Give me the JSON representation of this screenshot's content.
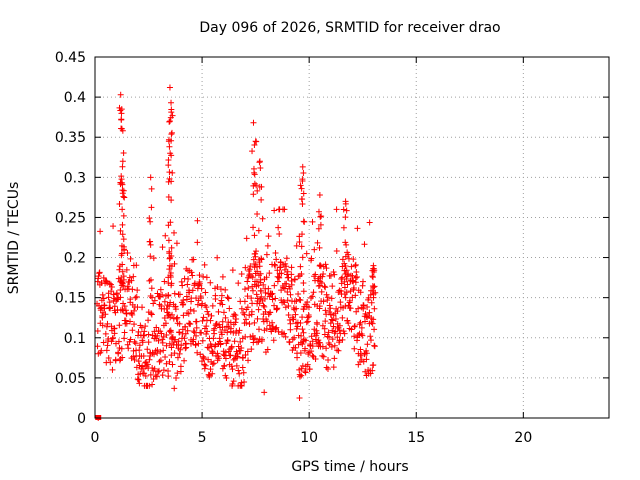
{
  "chart_data": {
    "type": "scatter",
    "title": "Day 096 of 2026, SRMTID for receiver drao",
    "xlabel": "GPS time / hours",
    "ylabel": "SRMTID / TECUs",
    "xlim": [
      0,
      24
    ],
    "ylim": [
      0,
      0.45
    ],
    "xticks": [
      0,
      5,
      10,
      15,
      20
    ],
    "yticks": [
      0,
      0.05,
      0.1,
      0.15,
      0.2,
      0.25,
      0.3,
      0.35,
      0.4,
      0.45
    ],
    "ytick_labels": [
      "0",
      "0.05",
      "0.1",
      "0.15",
      "0.2",
      "0.25",
      "0.3",
      "0.35",
      "0.4",
      "0.45"
    ],
    "xtick_labels": [
      "0",
      "5",
      "10",
      "15",
      "20"
    ],
    "grid": true,
    "series": [
      {
        "name": "SRMTID",
        "color": "#ff0000",
        "marker": "plus",
        "x_start": 0.1,
        "x_end": 13.1,
        "typical_range": [
          0.04,
          0.22
        ],
        "peaks": [
          {
            "x": 1.2,
            "y": 0.403
          },
          {
            "x": 1.25,
            "y": 0.385
          },
          {
            "x": 1.3,
            "y": 0.358
          },
          {
            "x": 1.3,
            "y": 0.32
          },
          {
            "x": 2.6,
            "y": 0.3
          },
          {
            "x": 3.5,
            "y": 0.412
          },
          {
            "x": 3.55,
            "y": 0.393
          },
          {
            "x": 3.5,
            "y": 0.37
          },
          {
            "x": 3.45,
            "y": 0.345
          },
          {
            "x": 7.4,
            "y": 0.368
          },
          {
            "x": 7.5,
            "y": 0.345
          },
          {
            "x": 7.7,
            "y": 0.32
          },
          {
            "x": 9.7,
            "y": 0.313
          },
          {
            "x": 9.6,
            "y": 0.29
          },
          {
            "x": 10.5,
            "y": 0.278
          },
          {
            "x": 11.7,
            "y": 0.27
          },
          {
            "x": 13.0,
            "y": 0.19
          }
        ],
        "lows": [
          {
            "x": 0.15,
            "y": 0.0
          },
          {
            "x": 7.9,
            "y": 0.032
          },
          {
            "x": 9.55,
            "y": 0.025
          },
          {
            "x": 3.7,
            "y": 0.037
          }
        ]
      }
    ]
  }
}
